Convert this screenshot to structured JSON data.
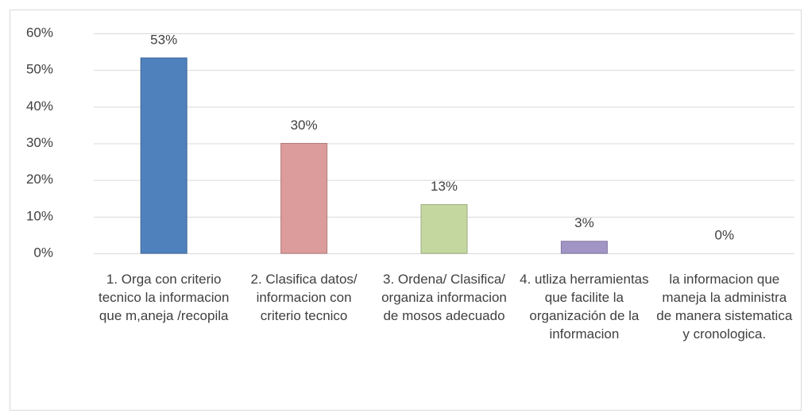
{
  "chart_data": {
    "type": "bar",
    "categories": [
      "1. Orga con criterio tecnico la informacion que m,aneja /recopila",
      "2. Clasifica datos/ informacion con criterio tecnico",
      "3. Ordena/ Clasifica/ organiza informacion de mosos adecuado",
      "4. utliza herramientas que facilite la organización de la informacion",
      "la informacion que maneja la administra de manera sistematica y cronologica."
    ],
    "values": [
      53.3,
      30,
      13.3,
      3.3,
      0
    ],
    "value_labels": [
      "53%",
      "30%",
      "13%",
      "3%",
      "0%"
    ],
    "colors": [
      "#4f81bd",
      "#dc9c9b",
      "#c4d79f",
      "#a195c6",
      "#f79646"
    ],
    "ylim": [
      0,
      60
    ],
    "yticks": [
      {
        "value": 0,
        "label": "0%"
      },
      {
        "value": 10,
        "label": "10%"
      },
      {
        "value": 20,
        "label": "20%"
      },
      {
        "value": 30,
        "label": "30%"
      },
      {
        "value": 40,
        "label": "40%"
      },
      {
        "value": 50,
        "label": "50%"
      },
      {
        "value": 60,
        "label": "60%"
      }
    ],
    "grid": true
  }
}
